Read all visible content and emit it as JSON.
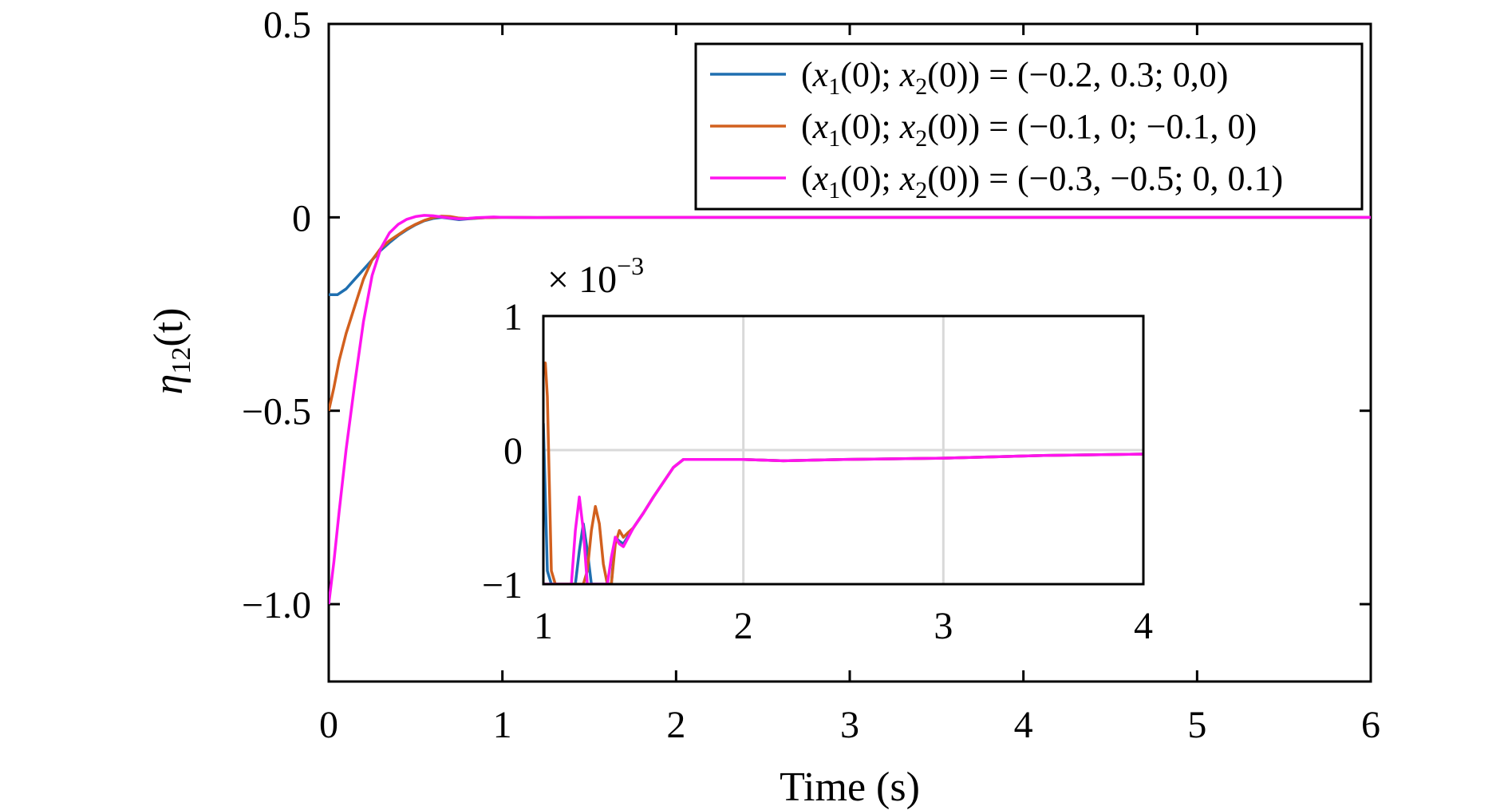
{
  "chart_data": [
    {
      "type": "line",
      "xlabel": "Time (s)",
      "ylabel_symbol": "η",
      "ylabel_subscript": "12",
      "ylabel_suffix": "(t)",
      "xlim": [
        0,
        6
      ],
      "ylim": [
        -1.2,
        0.5
      ],
      "xticks": [
        "0",
        "1",
        "2",
        "3",
        "4",
        "5",
        "6"
      ],
      "yticks": [
        "0.5",
        "0",
        "−0.5",
        "−1.0"
      ],
      "ytick_values": [
        0.5,
        0,
        -0.5,
        -1.0
      ],
      "grid": false,
      "legend_position": "top-right",
      "series": [
        {
          "name": "(x1(0); x2(0)) = (−0.2, 0.3; 0,0)",
          "legend_parts": [
            "(",
            "x",
            "1",
            "(0); ",
            "x",
            "2",
            "(0)) = (−0.2, 0.3; 0,0)"
          ],
          "color": "#1f6fb0",
          "x": [
            0,
            0.05,
            0.1,
            0.15,
            0.2,
            0.25,
            0.3,
            0.35,
            0.4,
            0.45,
            0.5,
            0.55,
            0.6,
            0.65,
            0.7,
            0.75,
            0.8,
            0.9,
            1.0,
            1.2,
            1.5,
            2,
            3,
            4,
            5,
            6
          ],
          "y": [
            -0.2,
            -0.2,
            -0.185,
            -0.16,
            -0.135,
            -0.11,
            -0.085,
            -0.065,
            -0.047,
            -0.032,
            -0.019,
            -0.009,
            -0.003,
            0.0,
            -0.003,
            -0.006,
            -0.004,
            -0.001,
            0.0,
            -0.0005,
            -0.0002,
            0,
            0,
            0,
            0,
            0
          ]
        },
        {
          "name": "(x1(0); x2(0)) = (−0.1, 0; −0.1, 0)",
          "legend_parts": [
            "(",
            "x",
            "1",
            "(0); ",
            "x",
            "2",
            "(0)) = (−0.1, 0; −0.1, 0)"
          ],
          "color": "#d2601e",
          "x": [
            0,
            0.03,
            0.06,
            0.1,
            0.15,
            0.2,
            0.25,
            0.3,
            0.35,
            0.4,
            0.45,
            0.5,
            0.55,
            0.6,
            0.65,
            0.7,
            0.75,
            0.8,
            0.9,
            1.0,
            1.2,
            1.5,
            2,
            3,
            4,
            5,
            6
          ],
          "y": [
            -0.5,
            -0.44,
            -0.37,
            -0.3,
            -0.23,
            -0.16,
            -0.11,
            -0.08,
            -0.06,
            -0.045,
            -0.03,
            -0.018,
            -0.008,
            -0.001,
            0.003,
            0.002,
            -0.002,
            -0.003,
            -0.001,
            0.0,
            -0.0005,
            -0.0002,
            0,
            0,
            0,
            0,
            0
          ]
        },
        {
          "name": "(x1(0); x2(0)) = (−0.3, −0.5; 0, 0.1)",
          "legend_parts": [
            "(",
            "x",
            "1",
            "(0); ",
            "x",
            "2",
            "(0)) = (−0.3, −0.5; 0, 0.1)"
          ],
          "color": "#ff14ef",
          "x": [
            0,
            0.03,
            0.06,
            0.1,
            0.15,
            0.2,
            0.25,
            0.3,
            0.35,
            0.4,
            0.45,
            0.5,
            0.55,
            0.6,
            0.65,
            0.7,
            0.75,
            0.8,
            0.85,
            0.9,
            0.95,
            1.0,
            1.2,
            1.5,
            2,
            3,
            4,
            5,
            6
          ],
          "y": [
            -1.0,
            -0.89,
            -0.76,
            -0.6,
            -0.43,
            -0.27,
            -0.15,
            -0.08,
            -0.04,
            -0.018,
            -0.005,
            0.002,
            0.005,
            0.004,
            0.001,
            -0.002,
            -0.004,
            -0.003,
            -0.001,
            0.0,
            0.001,
            0.0,
            -0.0005,
            -0.0002,
            0,
            0,
            0,
            0,
            0
          ]
        }
      ]
    },
    {
      "type": "line",
      "role": "inset",
      "scale_label_prefix": "× 10",
      "scale_label_exp": "−3",
      "xlim": [
        1,
        4
      ],
      "ylim": [
        -1,
        1
      ],
      "xticks": [
        "1",
        "2",
        "3",
        "4"
      ],
      "xtick_values": [
        1,
        2,
        3,
        4
      ],
      "yticks": [
        "1",
        "0",
        "−1"
      ],
      "ytick_values": [
        1,
        0,
        -1
      ],
      "grid": true,
      "series": [
        {
          "color": "#1f6fb0",
          "x": [
            1.0,
            1.02,
            1.04,
            1.06,
            1.08,
            1.1,
            1.12,
            1.14,
            1.16,
            1.18,
            1.2,
            1.22,
            1.24,
            1.26,
            1.28,
            1.3,
            1.32,
            1.34,
            1.36,
            1.38,
            1.4,
            1.45,
            1.5,
            1.55,
            1.6,
            1.65,
            1.7,
            2.0,
            2.2,
            2.5,
            3.0,
            3.5,
            4.0
          ],
          "y": [
            0.2,
            -0.9,
            -1.0,
            -1.0,
            -1.0,
            -1.0,
            -1.0,
            -1.0,
            -1.0,
            -0.75,
            -0.55,
            -0.75,
            -1.0,
            -1.0,
            -1.0,
            -1.0,
            -1.0,
            -1.0,
            -0.65,
            -0.68,
            -0.7,
            -0.58,
            -0.47,
            -0.35,
            -0.24,
            -0.13,
            -0.07,
            -0.07,
            -0.08,
            -0.07,
            -0.06,
            -0.04,
            -0.03
          ]
        },
        {
          "color": "#d2601e",
          "x": [
            1.0,
            1.01,
            1.02,
            1.04,
            1.06,
            1.08,
            1.1,
            1.12,
            1.14,
            1.16,
            1.18,
            1.2,
            1.22,
            1.24,
            1.26,
            1.28,
            1.3,
            1.32,
            1.34,
            1.36,
            1.38,
            1.4,
            1.42,
            1.45,
            1.5,
            1.55,
            1.6,
            1.65,
            1.7,
            2.0,
            2.2,
            2.5,
            3.0,
            3.5,
            4.0
          ],
          "y": [
            0.6,
            0.65,
            0.4,
            -0.9,
            -1.0,
            -1.0,
            -1.0,
            -1.0,
            -1.0,
            -1.0,
            -1.0,
            -1.0,
            -0.9,
            -0.6,
            -0.42,
            -0.55,
            -0.85,
            -1.0,
            -1.0,
            -0.7,
            -0.6,
            -0.65,
            -0.62,
            -0.58,
            -0.47,
            -0.35,
            -0.24,
            -0.13,
            -0.07,
            -0.07,
            -0.08,
            -0.07,
            -0.06,
            -0.04,
            -0.03
          ]
        },
        {
          "color": "#ff14ef",
          "x": [
            1.0,
            1.02,
            1.04,
            1.06,
            1.08,
            1.1,
            1.12,
            1.14,
            1.16,
            1.18,
            1.2,
            1.22,
            1.24,
            1.26,
            1.28,
            1.3,
            1.32,
            1.34,
            1.36,
            1.38,
            1.4,
            1.45,
            1.5,
            1.55,
            1.6,
            1.65,
            1.7,
            2.0,
            2.2,
            2.5,
            3.0,
            3.5,
            4.0
          ],
          "y": [
            -1.0,
            -1.0,
            -1.0,
            -1.0,
            -1.0,
            -1.0,
            -1.0,
            -1.0,
            -0.6,
            -0.35,
            -0.6,
            -1.0,
            -1.0,
            -1.0,
            -1.0,
            -1.0,
            -1.0,
            -0.8,
            -0.65,
            -0.7,
            -0.72,
            -0.58,
            -0.47,
            -0.35,
            -0.24,
            -0.13,
            -0.07,
            -0.07,
            -0.08,
            -0.07,
            -0.06,
            -0.04,
            -0.03
          ]
        }
      ]
    }
  ]
}
